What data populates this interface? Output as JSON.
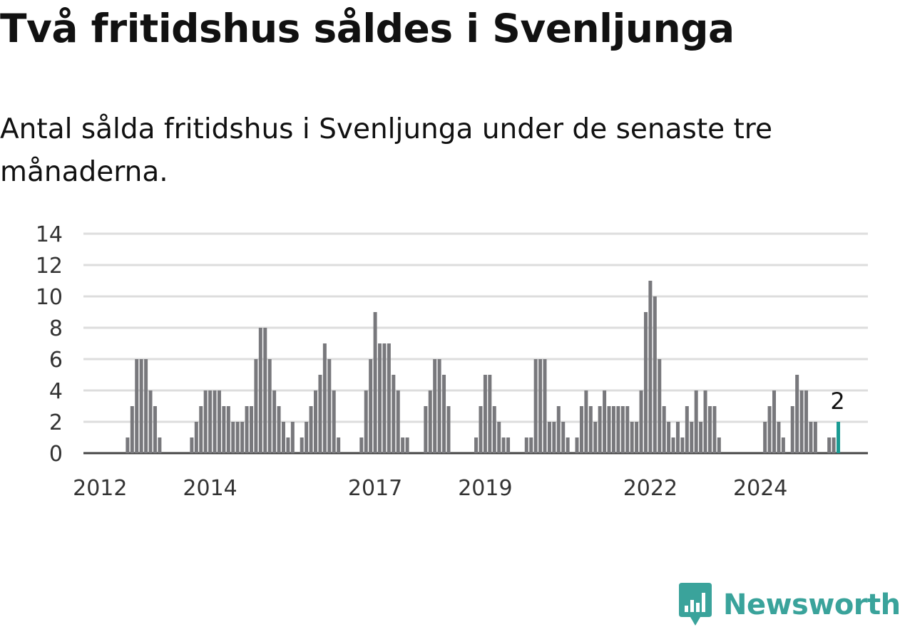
{
  "title": "Två fritidshus såldes i Svenljunga",
  "subtitle": "Antal sålda fritidshus i Svenljunga under de senaste tre månaderna.",
  "brand": {
    "name": "Newsworthy",
    "color": "#3aa39b",
    "icon": "newsworthy-logo-icon"
  },
  "chart_data": {
    "type": "bar",
    "title": "",
    "xlabel": "",
    "ylabel": "",
    "x_start": "2011-10",
    "frequency": "monthly",
    "ylim": [
      0,
      14
    ],
    "yticks": [
      "0",
      "2",
      "4",
      "6",
      "8",
      "10",
      "12",
      "14"
    ],
    "xticks": [
      {
        "label": "2012",
        "month": "2012-01"
      },
      {
        "label": "2014",
        "month": "2014-01"
      },
      {
        "label": "2017",
        "month": "2017-01"
      },
      {
        "label": "2019",
        "month": "2019-01"
      },
      {
        "label": "2022",
        "month": "2022-01"
      },
      {
        "label": "2024",
        "month": "2024-01"
      }
    ],
    "grid": true,
    "legend": "none",
    "bar_color": "#78787c",
    "highlight_color": "#1a9a92",
    "highlight_last": true,
    "highlight_label": "2",
    "values": [
      0,
      0,
      0,
      0,
      0,
      0,
      0,
      0,
      0,
      1,
      3,
      6,
      6,
      6,
      4,
      3,
      1,
      0,
      0,
      0,
      0,
      0,
      0,
      1,
      2,
      3,
      4,
      4,
      4,
      4,
      3,
      3,
      2,
      2,
      2,
      3,
      3,
      6,
      8,
      8,
      6,
      4,
      3,
      2,
      1,
      2,
      0,
      1,
      2,
      3,
      4,
      5,
      7,
      6,
      4,
      1,
      0,
      0,
      0,
      0,
      1,
      4,
      6,
      9,
      7,
      7,
      7,
      5,
      4,
      1,
      1,
      0,
      0,
      0,
      3,
      4,
      6,
      6,
      5,
      3,
      0,
      0,
      0,
      0,
      0,
      1,
      3,
      5,
      5,
      3,
      2,
      1,
      1,
      0,
      0,
      0,
      1,
      1,
      6,
      6,
      6,
      2,
      2,
      3,
      2,
      1,
      0,
      1,
      3,
      4,
      3,
      2,
      3,
      4,
      3,
      3,
      3,
      3,
      3,
      2,
      2,
      4,
      9,
      11,
      10,
      6,
      3,
      2,
      1,
      2,
      1,
      3,
      2,
      4,
      2,
      4,
      3,
      3,
      1,
      0,
      0,
      0,
      0,
      0,
      0,
      0,
      0,
      0,
      2,
      3,
      4,
      2,
      1,
      0,
      3,
      5,
      4,
      4,
      2,
      2,
      0,
      0,
      1,
      1,
      2
    ]
  }
}
